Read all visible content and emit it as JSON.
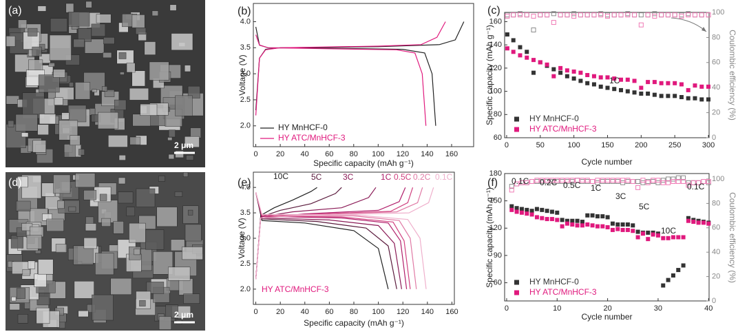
{
  "images": [
    {
      "label": "(a)",
      "scale_bar": "2 μm"
    },
    {
      "label": "(d)",
      "scale_bar": "2 μm"
    }
  ],
  "chart_data": [
    {
      "type": "line",
      "panel_label": "(b)",
      "xlabel": "Specific capacity (mAh g⁻¹)",
      "ylabel": "Voltage (V)",
      "xlim": [
        -2,
        178
      ],
      "ylim": [
        1.6,
        4.35
      ],
      "xticks": [
        0,
        20,
        40,
        60,
        80,
        100,
        120,
        140,
        160
      ],
      "yticks": [
        {
          "value": 2,
          "label": "2.0"
        },
        2.5,
        {
          "value": 3,
          "label": "3.0"
        },
        3.5,
        {
          "value": 4,
          "label": "4.0"
        }
      ],
      "legend": "lower left",
      "series": [
        {
          "name": "HY MnHCF-0",
          "color": "#222222",
          "x": [
            0,
            3,
            8,
            20,
            100,
            150,
            163,
            170,
            null,
            0,
            3,
            10,
            60,
            120,
            138,
            144,
            147
          ],
          "values": [
            2.3,
            3.3,
            3.47,
            3.5,
            3.52,
            3.56,
            3.65,
            4.0,
            null,
            3.9,
            3.55,
            3.5,
            3.49,
            3.47,
            3.4,
            3.0,
            2.0
          ]
        },
        {
          "name": "HY ATC/MnHCF-3",
          "color": "#e0197d",
          "x": [
            0,
            3,
            8,
            20,
            100,
            135,
            148,
            155,
            null,
            0,
            3,
            10,
            60,
            115,
            130,
            136,
            139
          ],
          "values": [
            2.2,
            3.3,
            3.46,
            3.5,
            3.53,
            3.56,
            3.7,
            4.0,
            null,
            3.75,
            3.55,
            3.5,
            3.48,
            3.46,
            3.4,
            3.0,
            2.0
          ]
        }
      ]
    },
    {
      "type": "scatter",
      "panel_label": "(c)",
      "xlabel": "Cycle number",
      "ylabel": "Specific capacity (mAh g⁻¹)",
      "y2label": "Coulombic efficiency (%)",
      "xlim": [
        -3,
        301
      ],
      "ylim": [
        60,
        168
      ],
      "y2lim": [
        0,
        100
      ],
      "xticks": [
        0,
        50,
        100,
        150,
        200,
        250,
        300
      ],
      "yticks": [
        60,
        80,
        100,
        120,
        140,
        160
      ],
      "y2ticks": [
        0,
        20,
        40,
        60,
        80,
        100
      ],
      "legend": "lower left",
      "annotations": [
        "1C"
      ],
      "x": [
        1,
        10,
        20,
        30,
        40,
        50,
        60,
        70,
        80,
        90,
        100,
        110,
        120,
        130,
        140,
        150,
        160,
        170,
        180,
        190,
        200,
        210,
        220,
        230,
        240,
        250,
        260,
        270,
        280,
        290,
        300
      ],
      "series": [
        {
          "name": "HY MnHCF-0",
          "color": "#333333",
          "marker": "filled",
          "values": [
            149,
            144,
            138,
            134,
            116,
            125,
            122,
            119,
            116,
            113,
            111,
            109,
            107,
            106,
            104,
            103,
            102,
            101,
            100,
            99,
            98,
            98,
            97,
            96,
            96,
            96,
            95,
            94,
            94,
            93,
            93
          ]
        },
        {
          "name": "HY ATC/MnHCF-3",
          "color": "#e0197d",
          "marker": "filled",
          "values": [
            137,
            134,
            131,
            129,
            127,
            125,
            123,
            113,
            120,
            118,
            117,
            116,
            114,
            113,
            112,
            112,
            111,
            110,
            110,
            109,
            103,
            108,
            108,
            107,
            107,
            107,
            106,
            101,
            105,
            104,
            104
          ]
        },
        {
          "color": "#8a8a8a",
          "marker": "open",
          "axis": "y2",
          "values": [
            98,
            98,
            99,
            98,
            86,
            98,
            98,
            99,
            98,
            98,
            99,
            98,
            98,
            98,
            99,
            98,
            98,
            98,
            99,
            98,
            98,
            98,
            99,
            98,
            98,
            98,
            98,
            99,
            98,
            98,
            98
          ]
        },
        {
          "color": "#f07ab5",
          "marker": "open",
          "axis": "y2",
          "values": [
            97,
            98,
            98,
            98,
            97,
            98,
            98,
            92,
            98,
            98,
            97,
            98,
            98,
            98,
            98,
            97,
            98,
            98,
            98,
            98,
            90,
            98,
            97,
            98,
            98,
            98,
            97,
            98,
            98,
            98,
            98
          ]
        }
      ]
    },
    {
      "type": "line",
      "panel_label": "(e)",
      "xlabel": "Specific capacity (mAh g⁻¹)",
      "ylabel": "Voltage (V)",
      "xlim": [
        -2,
        162
      ],
      "ylim": [
        1.7,
        4.3
      ],
      "xticks": [
        0,
        20,
        40,
        60,
        80,
        100,
        120,
        140,
        160
      ],
      "yticks": [
        {
          "value": 2,
          "label": "2.0"
        },
        2.5,
        {
          "value": 3,
          "label": "3.0"
        },
        3.5,
        {
          "value": 4,
          "label": "4.0"
        }
      ],
      "annotations": [
        "HY ATC/MnHCF-3"
      ],
      "series": [
        {
          "name": "10C",
          "color": "#222222",
          "x": [
            0,
            4,
            15,
            30,
            45,
            50,
            null,
            0,
            5,
            40,
            80,
            100,
            108
          ],
          "values": [
            2.2,
            3.45,
            3.6,
            3.75,
            3.92,
            4.0,
            null,
            3.9,
            3.35,
            3.3,
            3.15,
            2.8,
            2.0
          ]
        },
        {
          "name": "5C",
          "color": "#5a1a3c",
          "x": [
            0,
            4,
            20,
            45,
            65,
            70,
            null,
            0,
            5,
            50,
            90,
            108,
            115
          ],
          "values": [
            2.2,
            3.42,
            3.55,
            3.68,
            3.88,
            4.0,
            null,
            3.9,
            3.38,
            3.33,
            3.2,
            2.85,
            2.0
          ]
        },
        {
          "name": "3C",
          "color": "#8a1a56",
          "x": [
            0,
            4,
            30,
            70,
            92,
            98,
            null,
            0,
            5,
            60,
            100,
            113,
            119
          ],
          "values": [
            2.2,
            3.42,
            3.52,
            3.6,
            3.8,
            4.0,
            null,
            3.9,
            3.4,
            3.36,
            3.25,
            2.9,
            2.0
          ]
        },
        {
          "name": "1C",
          "color": "#b01e6a",
          "x": [
            0,
            4,
            40,
            100,
            117,
            122,
            null,
            0,
            5,
            70,
            108,
            118,
            123
          ],
          "values": [
            2.2,
            3.4,
            3.48,
            3.55,
            3.72,
            4.0,
            null,
            3.9,
            3.43,
            3.4,
            3.3,
            2.95,
            2.0
          ]
        },
        {
          "name": "0.5C",
          "color": "#d0407f",
          "x": [
            0,
            4,
            40,
            110,
            124,
            128,
            null,
            0,
            5,
            70,
            112,
            121,
            126
          ],
          "values": [
            2.2,
            3.4,
            3.47,
            3.53,
            3.7,
            4.0,
            null,
            3.9,
            3.44,
            3.42,
            3.32,
            2.95,
            2.0
          ]
        },
        {
          "name": "0.2C",
          "color": "#e07aa5",
          "x": [
            0,
            4,
            40,
            115,
            132,
            136,
            null,
            0,
            5,
            80,
            117,
            126,
            131
          ],
          "values": [
            2.2,
            3.4,
            3.46,
            3.52,
            3.7,
            4.0,
            null,
            3.9,
            3.46,
            3.44,
            3.35,
            3.0,
            2.0
          ]
        },
        {
          "name": "0.1C",
          "color": "#efb0cc",
          "x": [
            0,
            4,
            40,
            125,
            141,
            145,
            null,
            0,
            5,
            80,
            124,
            134,
            139
          ],
          "values": [
            2.2,
            3.4,
            3.45,
            3.5,
            3.7,
            4.0,
            null,
            3.9,
            3.47,
            3.46,
            3.37,
            3.0,
            2.0
          ]
        }
      ]
    },
    {
      "type": "scatter",
      "panel_label": "(f)",
      "xlabel": "Cycle number",
      "ylabel": "Specific capacity (mAh g⁻¹)",
      "y2label": "Coulombic efficiency (%)",
      "xlim": [
        -0.4,
        40.1
      ],
      "ylim": [
        40,
        180
      ],
      "y2lim": [
        0,
        104.5
      ],
      "xticks": [
        0,
        10,
        20,
        30,
        40
      ],
      "yticks": [
        60,
        90,
        120,
        150,
        180
      ],
      "y2ticks": [
        0,
        20,
        40,
        60,
        80,
        100
      ],
      "legend": "lower left",
      "annotations": [
        "0.1C",
        "0.2C",
        "0.5C",
        "1C",
        "3C",
        "5C",
        "10C",
        "0.1C"
      ],
      "x": [
        1,
        2,
        3,
        4,
        5,
        6,
        7,
        8,
        9,
        10,
        11,
        12,
        13,
        14,
        15,
        16,
        17,
        18,
        19,
        20,
        21,
        22,
        23,
        24,
        25,
        26,
        27,
        28,
        29,
        30,
        31,
        32,
        33,
        34,
        35,
        36,
        37,
        38,
        39,
        40
      ],
      "series": [
        {
          "name": "HY MnHCF-0",
          "color": "#333333",
          "marker": "filled",
          "values": [
            144,
            142,
            141,
            140,
            139,
            141,
            140,
            139,
            138,
            137,
            129,
            128,
            128,
            128,
            127,
            134,
            134,
            133,
            133,
            132,
            125,
            124,
            124,
            124,
            123,
            116,
            115,
            115,
            115,
            114,
            57,
            63,
            68,
            74,
            79,
            131,
            129,
            128,
            127,
            126
          ]
        },
        {
          "name": "HY ATC/MnHCF-3",
          "color": "#e0197d",
          "marker": "filled",
          "values": [
            140,
            138,
            137,
            136,
            135,
            132,
            131,
            130,
            130,
            129,
            122,
            125,
            124,
            123,
            123,
            124,
            123,
            122,
            122,
            121,
            118,
            119,
            118,
            118,
            117,
            110,
            114,
            108,
            113,
            112,
            109,
            109,
            110,
            110,
            110,
            128,
            127,
            126,
            126,
            125
          ]
        },
        {
          "color": "#8a8a8a",
          "marker": "open",
          "axis": "y2",
          "values": [
            94,
            96,
            97,
            97,
            98,
            98,
            98,
            98,
            98,
            98,
            98,
            98,
            98,
            99,
            98,
            98,
            98,
            97,
            98,
            98,
            98,
            98,
            97,
            98,
            98,
            98,
            97,
            98,
            98,
            97,
            99,
            100,
            100,
            101,
            101,
            97,
            97,
            97,
            98,
            97
          ]
        },
        {
          "color": "#f07ab5",
          "marker": "open",
          "axis": "y2",
          "values": [
            91,
            96,
            97,
            97,
            98,
            99,
            99,
            99,
            99,
            99,
            99,
            99,
            99,
            99,
            99,
            99,
            98,
            99,
            99,
            99,
            99,
            99,
            99,
            99,
            98,
            93,
            99,
            97,
            99,
            99,
            97,
            97,
            98,
            98,
            98,
            95,
            97,
            97,
            98,
            98
          ]
        }
      ]
    }
  ]
}
